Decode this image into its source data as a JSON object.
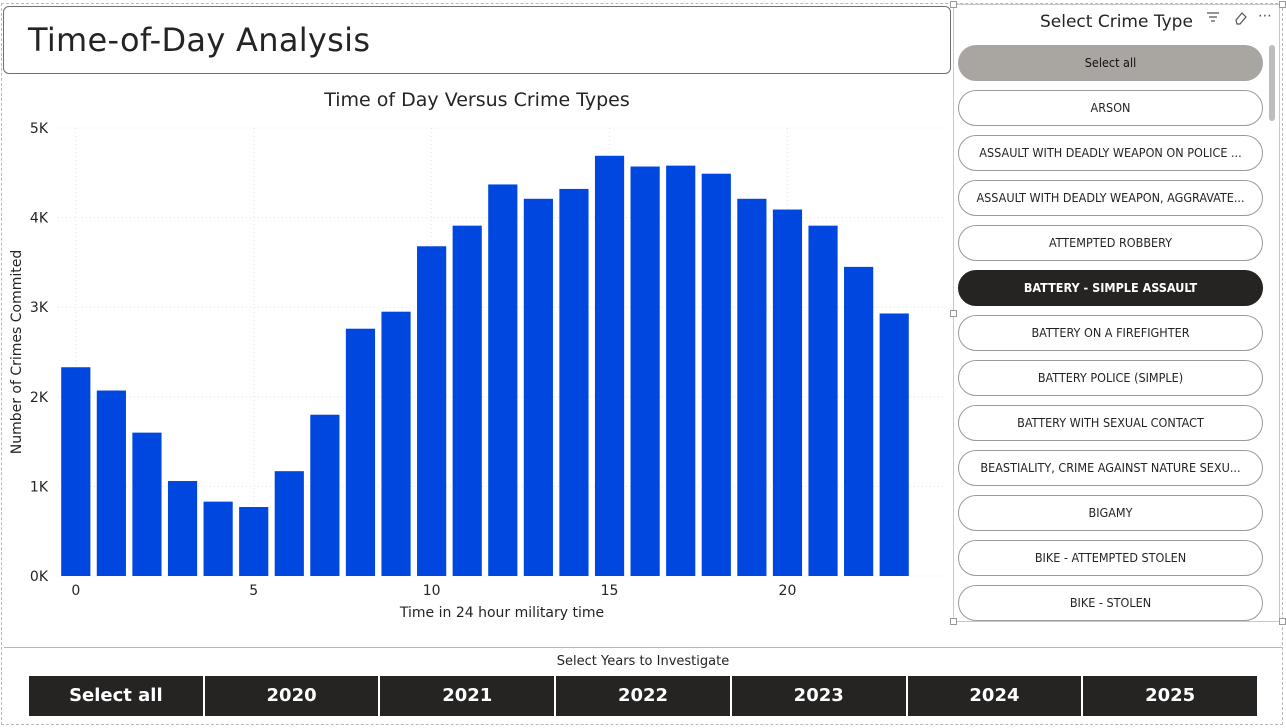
{
  "page": {
    "title": "Time-of-Day Analysis"
  },
  "slicer": {
    "title": "Select Crime Type",
    "items": [
      {
        "label": "Select all",
        "state": "all"
      },
      {
        "label": "ARSON",
        "state": ""
      },
      {
        "label": "ASSAULT WITH DEADLY WEAPON ON POLICE ...",
        "state": ""
      },
      {
        "label": "ASSAULT WITH DEADLY WEAPON, AGGRAVATE...",
        "state": ""
      },
      {
        "label": "ATTEMPTED ROBBERY",
        "state": ""
      },
      {
        "label": "BATTERY - SIMPLE ASSAULT",
        "state": "selected"
      },
      {
        "label": "BATTERY ON A FIREFIGHTER",
        "state": ""
      },
      {
        "label": "BATTERY POLICE (SIMPLE)",
        "state": ""
      },
      {
        "label": "BATTERY WITH SEXUAL CONTACT",
        "state": ""
      },
      {
        "label": "BEASTIALITY, CRIME AGAINST NATURE SEXU...",
        "state": ""
      },
      {
        "label": "BIGAMY",
        "state": ""
      },
      {
        "label": "BIKE - ATTEMPTED STOLEN",
        "state": ""
      },
      {
        "label": "BIKE - STOLEN",
        "state": ""
      }
    ]
  },
  "years": {
    "label": "Select Years to Investigate",
    "buttons": [
      "Select all",
      "2020",
      "2021",
      "2022",
      "2023",
      "2024",
      "2025"
    ]
  },
  "colors": {
    "bar": "#0047E0",
    "selected_pill": "#252423",
    "select_all_pill": "#A9A6A2"
  },
  "chart_data": {
    "type": "bar",
    "title": "Time of Day Versus Crime Types",
    "xlabel": "Time in 24 hour military time",
    "ylabel": "Number of Crimes Commited",
    "categories": [
      0,
      1,
      2,
      3,
      4,
      5,
      6,
      7,
      8,
      9,
      10,
      11,
      12,
      13,
      14,
      15,
      16,
      17,
      18,
      19,
      20,
      21,
      22,
      23
    ],
    "values": [
      2330,
      2070,
      1600,
      1060,
      830,
      770,
      1170,
      1800,
      2760,
      2950,
      3680,
      3910,
      4370,
      4210,
      4320,
      4690,
      4570,
      4580,
      4490,
      4210,
      4090,
      3910,
      3450,
      2930
    ],
    "x_ticks": [
      0,
      5,
      10,
      15,
      20
    ],
    "y_ticks": [
      0,
      1000,
      2000,
      3000,
      4000,
      5000
    ],
    "y_tick_labels": [
      "0K",
      "1K",
      "2K",
      "3K",
      "4K",
      "5K"
    ],
    "ylim": [
      0,
      5000
    ],
    "grid": true
  }
}
